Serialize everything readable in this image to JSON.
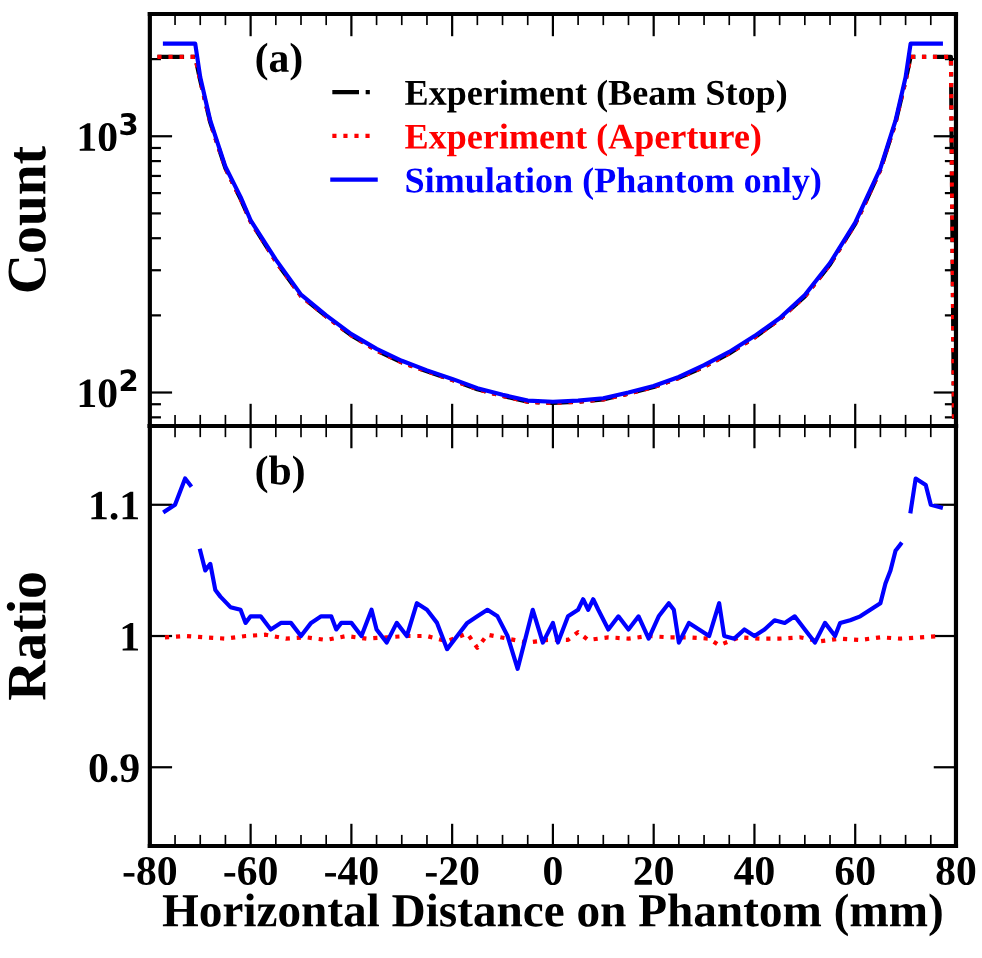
{
  "chart_data": [
    {
      "type": "line",
      "ylabel": "Count",
      "annotations": [
        "(a)"
      ],
      "log": "y",
      "legend": "top",
      "tick_labels": "y",
      "grid": false,
      "xlim": [
        -80,
        80
      ],
      "xticks": [
        -80,
        -60,
        -40,
        -20,
        0,
        20,
        40,
        60,
        80
      ],
      "ylim": [
        74,
        3000
      ],
      "yticks": [
        {
          "value": 80,
          "label": null
        },
        {
          "value": 90,
          "label": null
        },
        {
          "value": 100,
          "label": "10$^{2}$"
        },
        {
          "value": 200,
          "label": null
        },
        {
          "value": 300,
          "label": null
        },
        {
          "value": 400,
          "label": null
        },
        {
          "value": 500,
          "label": null
        },
        {
          "value": 600,
          "label": null
        },
        {
          "value": 700,
          "label": null
        },
        {
          "value": 800,
          "label": null
        },
        {
          "value": 900,
          "label": null
        },
        {
          "value": 1000,
          "label": "10$^{3}$"
        },
        {
          "value": 2000,
          "label": null
        }
      ],
      "series": [
        {
          "name": "Experiment (Beam Stop)",
          "color": "#000000",
          "line_style": "dashdot",
          "x": [
            -78.5,
            -71,
            -70,
            -68,
            -65,
            -62,
            -60,
            -55,
            -50,
            -45,
            -40,
            -35,
            -30,
            -25,
            -20,
            -15,
            -10,
            -5,
            0,
            5,
            10,
            15,
            20,
            25,
            30,
            35,
            40,
            45,
            50,
            55,
            60,
            62,
            65,
            68,
            70,
            71,
            79,
            79.6
          ],
          "values": [
            2040,
            2040,
            1650,
            1130,
            750,
            570,
            465,
            325,
            238,
            198,
            167,
            146,
            131,
            121,
            112,
            103,
            97,
            92,
            91,
            92,
            94,
            99,
            105,
            114,
            126,
            142,
            164,
            193,
            237,
            316,
            455,
            550,
            740,
            1130,
            1650,
            2040,
            2040,
            78
          ]
        },
        {
          "name": "Experiment (Aperture)",
          "color": "#ff0000",
          "line_style": "dotted",
          "x": [
            -78.5,
            -71,
            -70,
            -68,
            -65,
            -62,
            -60,
            -55,
            -50,
            -45,
            -40,
            -35,
            -30,
            -25,
            -20,
            -15,
            -10,
            -5,
            0,
            5,
            10,
            15,
            20,
            25,
            30,
            35,
            40,
            45,
            50,
            55,
            60,
            62,
            65,
            68,
            70,
            71,
            79,
            79.6
          ],
          "values": [
            2040,
            2040,
            1650,
            1130,
            750,
            570,
            465,
            325,
            238,
            198,
            167,
            146,
            131,
            121,
            112,
            103,
            97,
            92,
            91,
            92,
            94,
            99,
            105,
            114,
            126,
            142,
            164,
            193,
            237,
            316,
            455,
            550,
            740,
            1130,
            1650,
            2040,
            2040,
            78
          ]
        },
        {
          "name": "Simulation (Phantom only)",
          "color": "#0000ff",
          "line_style": "solid",
          "x": [
            -77,
            -71,
            -70,
            -68,
            -65,
            -62,
            -60,
            -55,
            -50,
            -45,
            -40,
            -35,
            -30,
            -25,
            -20,
            -15,
            -10,
            -5,
            0,
            5,
            10,
            15,
            20,
            25,
            30,
            35,
            40,
            45,
            50,
            55,
            60,
            62,
            65,
            68,
            70,
            71,
            77
          ],
          "values": [
            2300,
            2300,
            1700,
            1150,
            760,
            580,
            470,
            330,
            241,
            200,
            169,
            148,
            133,
            122,
            113,
            104,
            98,
            93,
            92,
            93,
            95,
            100,
            106,
            115,
            128,
            144,
            166,
            195,
            240,
            320,
            460,
            560,
            750,
            1150,
            1700,
            2300,
            2300
          ]
        }
      ]
    },
    {
      "type": "line",
      "xlabel": "Horizontal Distance on Phantom (mm)",
      "ylabel": "Ratio",
      "annotations": [
        "(b)"
      ],
      "grid": false,
      "xlim": [
        -80,
        80
      ],
      "xticks": [
        -80,
        -60,
        -40,
        -20,
        0,
        20,
        40,
        60,
        80
      ],
      "ylim": [
        0.84,
        1.16
      ],
      "yticks": [
        0.9,
        1,
        1.1
      ],
      "series": [
        {
          "color": "#ff0000",
          "line_style": "dotted",
          "x": [
            -77,
            -73,
            -69,
            -65,
            -61,
            -57,
            -53,
            -49,
            -45,
            -41,
            -37,
            -33,
            -29,
            -25,
            -21,
            -17,
            -15,
            -13,
            -9,
            -5,
            -1,
            3,
            5,
            7,
            11,
            15,
            19,
            23,
            27,
            31,
            33,
            37,
            41,
            45,
            49,
            53,
            57,
            61,
            65,
            69,
            73,
            77
          ],
          "values": [
            0.999,
            1.0,
            0.999,
            0.998,
            1.0,
            1.001,
            0.998,
            0.999,
            0.997,
            1.0,
            0.998,
            0.999,
            1.0,
            1.0,
            0.996,
            1.002,
            0.991,
            1.001,
            0.998,
            0.995,
            0.997,
            0.997,
            1.003,
            0.997,
            0.999,
            0.998,
            1.0,
            0.999,
            0.999,
            0.998,
            0.993,
            0.999,
            0.998,
            0.998,
            0.999,
            0.996,
            0.998,
            0.997,
            0.999,
            0.998,
            0.999,
            1.0
          ]
        },
        {
          "color": "#0000ff",
          "line_style": "solid",
          "x": [
            -77,
            -75,
            -73,
            -72,
            -71,
            -70,
            -69,
            -68,
            -67,
            -66,
            -64,
            -62,
            -61,
            -60,
            -58,
            -56,
            -54,
            -52,
            -50,
            -48,
            -46,
            -44,
            -43,
            -42,
            -40,
            -38,
            -36,
            -35,
            -33,
            -31,
            -29,
            -27,
            -25,
            -23,
            -21,
            -19,
            -17,
            -15,
            -13,
            -11,
            -9,
            -7,
            -5,
            -4,
            -2,
            0,
            1,
            3,
            5,
            6,
            7,
            8,
            9,
            11,
            13,
            15,
            17,
            19,
            21,
            23,
            24,
            25,
            27,
            29,
            31,
            33,
            34,
            36,
            38,
            40,
            42,
            44,
            46,
            48,
            50,
            52,
            54,
            56,
            57,
            59,
            61,
            63,
            65,
            66,
            67,
            68,
            69,
            70,
            71,
            72,
            74,
            75,
            77
          ],
          "values": [
            1.095,
            1.1,
            1.12,
            1.115,
            null,
            1.065,
            1.05,
            1.055,
            1.035,
            1.03,
            1.022,
            1.02,
            1.01,
            1.015,
            1.015,
            1.005,
            1.01,
            1.01,
            1.0,
            1.01,
            1.015,
            1.015,
            1.005,
            1.01,
            1.01,
            1.0,
            1.02,
            1.005,
            0.995,
            1.01,
            1.0,
            1.025,
            1.02,
            1.01,
            0.99,
            1.0,
            1.01,
            1.015,
            1.02,
            1.015,
            1.0,
            0.975,
            1.005,
            1.02,
            0.995,
            1.01,
            0.995,
            1.015,
            1.02,
            1.028,
            1.02,
            1.028,
            1.02,
            1.005,
            1.015,
            1.005,
            1.015,
            0.998,
            1.015,
            1.025,
            1.02,
            0.995,
            1.01,
            1.005,
            1.0,
            1.025,
            1.0,
            0.998,
            1.005,
            1.0,
            1.005,
            1.012,
            1.01,
            1.015,
            1.005,
            0.995,
            1.01,
            1.0,
            1.01,
            1.012,
            1.015,
            1.02,
            1.025,
            1.04,
            1.05,
            1.065,
            1.07,
            null,
            1.095,
            1.12,
            1.115,
            1.1,
            1.098
          ]
        }
      ]
    }
  ]
}
